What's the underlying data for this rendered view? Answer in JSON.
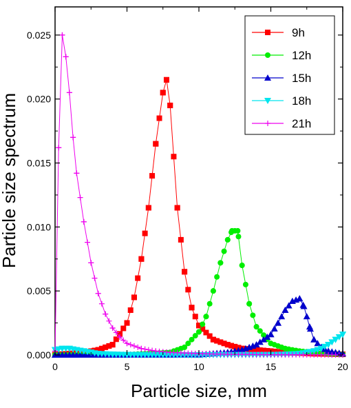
{
  "chart_data": {
    "type": "line",
    "xlabel": "Particle size, mm",
    "ylabel": "Particle size spectrum",
    "xlim": [
      0,
      20
    ],
    "ylim": [
      0,
      0.0272
    ],
    "xticks": [
      0,
      5,
      10,
      15,
      20
    ],
    "xtick_labels": [
      "0",
      "5",
      "10",
      "15",
      "20"
    ],
    "yticks": [
      0,
      0.005,
      0.01,
      0.015,
      0.02,
      0.025
    ],
    "ytick_labels": [
      "0.000",
      "0.005",
      "0.010",
      "0.015",
      "0.020",
      "0.025"
    ],
    "grid": false,
    "legend_position": "top-right",
    "series": [
      {
        "name": "9h",
        "color": "#ff0000",
        "marker": "square",
        "x": [
          0,
          1,
          2,
          3,
          4,
          5,
          5.5,
          6,
          6.5,
          7,
          7.5,
          7.75,
          8,
          8.5,
          9,
          9.5,
          10,
          11,
          12,
          13,
          14,
          15,
          16,
          18,
          20
        ],
        "y": [
          3e-05,
          0.0001,
          0.0002,
          0.0004,
          0.0008,
          0.0025,
          0.0045,
          0.0075,
          0.0115,
          0.0165,
          0.0205,
          0.0215,
          0.0195,
          0.0115,
          0.0065,
          0.0037,
          0.0023,
          0.0012,
          0.0008,
          0.0005,
          0.0004,
          0.0003,
          0.0002,
          0.0001,
          5e-05
        ]
      },
      {
        "name": "12h",
        "color": "#00ee00",
        "marker": "circle",
        "x": [
          0,
          5,
          8,
          9,
          10,
          10.5,
          11,
          11.5,
          12,
          12.3,
          12.7,
          13,
          13.5,
          14,
          15,
          16,
          17,
          18,
          19,
          20
        ],
        "y": [
          0,
          2e-05,
          0.0002,
          0.0006,
          0.0018,
          0.003,
          0.005,
          0.0072,
          0.009,
          0.0097,
          0.0097,
          0.007,
          0.004,
          0.0022,
          0.0009,
          0.0005,
          0.0003,
          0.0002,
          0.0001,
          5e-05
        ]
      },
      {
        "name": "15h",
        "color": "#0000cc",
        "marker": "triangle-up",
        "x": [
          0,
          10,
          12,
          13,
          14,
          15,
          15.5,
          16,
          16.5,
          17,
          17.3,
          17.7,
          18,
          18.5,
          19,
          20
        ],
        "y": [
          0,
          2e-05,
          0.0002,
          0.0004,
          0.0008,
          0.0016,
          0.0025,
          0.0035,
          0.0042,
          0.0044,
          0.0038,
          0.0022,
          0.0012,
          0.0006,
          0.0003,
          0.0001
        ]
      },
      {
        "name": "18h",
        "color": "#00e5ee",
        "marker": "triangle-down",
        "x": [
          0,
          0.5,
          1,
          1.5,
          2,
          2.5,
          3,
          4,
          5,
          10,
          15,
          16,
          17,
          18,
          18.5,
          19,
          19.5,
          20
        ],
        "y": [
          0.0004,
          0.0005,
          0.0005,
          0.0004,
          0.0003,
          0.0002,
          0.0001,
          5e-05,
          2e-05,
          0,
          2e-05,
          5e-05,
          0.0001,
          0.0003,
          0.0005,
          0.0008,
          0.0012,
          0.0016
        ]
      },
      {
        "name": "21h",
        "color": "#ee00ee",
        "marker": "plus",
        "x": [
          0,
          0.25,
          0.5,
          0.75,
          1,
          1.25,
          1.5,
          2,
          2.5,
          3,
          3.5,
          4,
          4.5,
          5,
          6,
          7,
          8,
          10,
          12,
          15,
          20
        ],
        "y": [
          0.0003,
          0.0162,
          0.025,
          0.0233,
          0.0205,
          0.017,
          0.0142,
          0.0104,
          0.0072,
          0.0048,
          0.0032,
          0.0021,
          0.0014,
          0.0009,
          0.0005,
          0.0003,
          0.0002,
          0.0001,
          5e-05,
          2e-05,
          0
        ]
      }
    ]
  }
}
